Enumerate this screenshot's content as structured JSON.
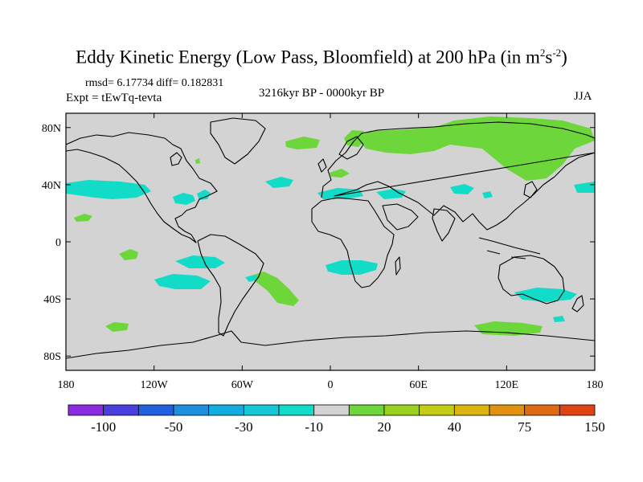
{
  "title": {
    "main": "Eddy Kinetic Energy (Low Pass, Bloomfield) at 200 hPa (in m",
    "sup1": "2",
    "mid": "s",
    "sup2": "-2",
    "end": ")"
  },
  "stats_line": "rmsd= 6.17734 diff= 0.182831",
  "experiment_label": "Expt = tEwTq-tevta",
  "period_label": "3216kyr BP - 0000kyr BP",
  "season_label": "JJA",
  "map": {
    "lon_ticks": [
      "180",
      "120W",
      "60W",
      "0",
      "60E",
      "120E",
      "180"
    ],
    "lat_ticks": [
      "80N",
      "40N",
      "0",
      "40S",
      "80S"
    ],
    "ocean_color": "#d3d3d3",
    "coast_color": "#000000"
  },
  "colorbar": {
    "colors": [
      "#8a2be2",
      "#4b3ee0",
      "#1f5fe0",
      "#1e8fe0",
      "#10aee0",
      "#14c8d8",
      "#12dcc8",
      "#d3d3d3",
      "#6cd63a",
      "#9ad11f",
      "#c4cd14",
      "#dcb60e",
      "#e0920f",
      "#e06a12",
      "#e04414"
    ],
    "labels": [
      {
        "text": "-100",
        "slot": 1
      },
      {
        "text": "-50",
        "slot": 3
      },
      {
        "text": "-30",
        "slot": 5
      },
      {
        "text": "-10",
        "slot": 7
      },
      {
        "text": "20",
        "slot": 9
      },
      {
        "text": "40",
        "slot": 11
      },
      {
        "text": "75",
        "slot": 13
      },
      {
        "text": "150",
        "slot": 15
      }
    ]
  }
}
